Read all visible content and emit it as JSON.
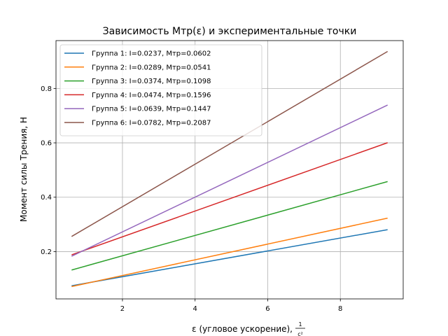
{
  "chart_data": {
    "type": "line",
    "title": "Зависимость Мтр(ε) и экспериментальные точки",
    "xlabel": "ε (угловое ускорение), 1/c²",
    "xlabel_main": "ε (угловое ускорение),",
    "xlabel_frac_num": "1",
    "xlabel_frac_den": "c²",
    "ylabel": "Момент силы Трения, Н",
    "xlim": [
      0.17,
      9.73
    ],
    "ylim": [
      0.026,
      0.976
    ],
    "xticks": [
      2,
      4,
      6,
      8
    ],
    "yticks": [
      0.2,
      0.4,
      0.6,
      0.8
    ],
    "grid": true,
    "legend_position": "upper-left",
    "x": [
      0.6,
      9.3
    ],
    "series": [
      {
        "name": "Группа 1: I=0.0237, Мтр=0.0602",
        "color": "#1f77b4",
        "values": [
          0.0744,
          0.2806
        ]
      },
      {
        "name": "Группа 2: I=0.0289, Мтр=0.0541",
        "color": "#ff7f0e",
        "values": [
          0.0714,
          0.323
        ]
      },
      {
        "name": "Группа 3: I=0.0374, Мтр=0.1098",
        "color": "#2ca02c",
        "values": [
          0.1322,
          0.4576
        ]
      },
      {
        "name": "Группа 4: I=0.0474, Мтр=0.1596",
        "color": "#d62728",
        "values": [
          0.188,
          0.6004
        ]
      },
      {
        "name": "Группа 5: I=0.0639, Мтр=0.1447",
        "color": "#9467bd",
        "values": [
          0.183,
          0.739
        ]
      },
      {
        "name": "Группа 6: I=0.0782, Мтр=0.2087",
        "color": "#8c564b",
        "values": [
          0.2556,
          0.936
        ]
      }
    ]
  }
}
